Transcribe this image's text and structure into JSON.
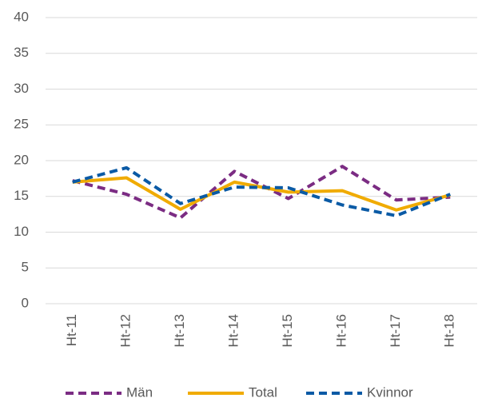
{
  "chart_data": {
    "type": "line",
    "categories": [
      "Ht-11",
      "Ht-12",
      "Ht-13",
      "Ht-14",
      "Ht-15",
      "Ht-16",
      "Ht-17",
      "Ht-18"
    ],
    "series": [
      {
        "name": "Män",
        "color": "#7b2c83",
        "dashed": true,
        "values": [
          17.2,
          15.3,
          12,
          18.5,
          14.7,
          19.2,
          14.5,
          14.9
        ]
      },
      {
        "name": "Total",
        "color": "#f0ab00",
        "dashed": false,
        "values": [
          17,
          17.6,
          13.2,
          17,
          15.6,
          15.8,
          13.1,
          15.2
        ]
      },
      {
        "name": "Kvinnor",
        "color": "#0a5aa5",
        "dashed": true,
        "values": [
          17,
          19,
          14,
          16.3,
          16.2,
          13.8,
          12.3,
          15.3
        ]
      }
    ],
    "ylim": [
      0,
      40
    ],
    "yticks": [
      0,
      5,
      10,
      15,
      20,
      25,
      30,
      35,
      40
    ],
    "grid": true,
    "legend": "bottom"
  }
}
